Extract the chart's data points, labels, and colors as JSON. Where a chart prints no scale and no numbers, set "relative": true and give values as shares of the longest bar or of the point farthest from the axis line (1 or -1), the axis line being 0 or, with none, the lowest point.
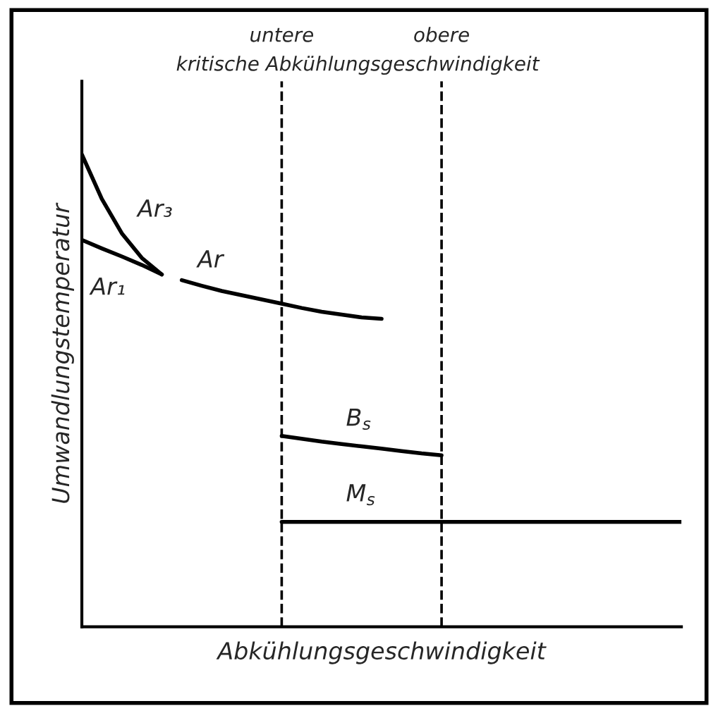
{
  "chart_data": {
    "type": "line",
    "relative": true,
    "xlabel": "Abkühlungsgeschwindigkeit",
    "ylabel": "Umwandlungstemperatur",
    "tick_labels": false,
    "grid": false,
    "marker": "none",
    "line_style": "solid",
    "categories": [
      null,
      null,
      null,
      null,
      null,
      null,
      null,
      null,
      null,
      null,
      null,
      null,
      null,
      null,
      null,
      null,
      null,
      null,
      null,
      null,
      null,
      null,
      null,
      null,
      null,
      null,
      null,
      null,
      null,
      null,
      null
    ],
    "series": [
      {
        "name": "Ar₃",
        "color": "#000000",
        "values": [
          1.0,
          0.906,
          0.833,
          0.781,
          0.746,
          null,
          null,
          null,
          null,
          null,
          null,
          null,
          null,
          null,
          null,
          null,
          null,
          null,
          null,
          null,
          null,
          null,
          null,
          null,
          null,
          null,
          null,
          null,
          null,
          null,
          null
        ]
      },
      {
        "name": "Ar₁",
        "color": "#000000",
        "values": [
          0.819,
          0.801,
          0.784,
          0.766,
          0.746,
          null,
          null,
          null,
          null,
          null,
          null,
          null,
          null,
          null,
          null,
          null,
          null,
          null,
          null,
          null,
          null,
          null,
          null,
          null,
          null,
          null,
          null,
          null,
          null,
          null,
          null
        ]
      },
      {
        "name": "Ar",
        "color": "#000000",
        "values": [
          null,
          null,
          null,
          null,
          null,
          0.734,
          0.722,
          0.711,
          0.702,
          0.693,
          0.684,
          0.675,
          0.667,
          0.661,
          0.655,
          0.652,
          null,
          null,
          null,
          null,
          null,
          null,
          null,
          null,
          null,
          null,
          null,
          null,
          null,
          null,
          null
        ]
      },
      {
        "name": "B$_{s}$",
        "color": "#000000",
        "values": [
          null,
          null,
          null,
          null,
          null,
          null,
          null,
          null,
          null,
          null,
          0.404,
          0.398,
          0.392,
          0.387,
          0.382,
          0.377,
          0.372,
          0.367,
          0.363,
          null,
          null,
          null,
          null,
          null,
          null,
          null,
          null,
          null,
          null,
          null,
          null
        ]
      },
      {
        "name": "M$_{s}$",
        "color": "#000000",
        "values": [
          null,
          null,
          null,
          null,
          null,
          null,
          null,
          null,
          null,
          null,
          0.222,
          0.222,
          0.222,
          0.222,
          0.222,
          0.222,
          0.222,
          0.222,
          0.222,
          0.222,
          0.222,
          0.222,
          0.222,
          0.222,
          0.222,
          0.222,
          0.222,
          0.222,
          0.222,
          0.222,
          0.222
        ]
      }
    ],
    "annotations": [
      "untere",
      "obere",
      "kritische Abkühlungsgeschwindigkeit"
    ]
  }
}
